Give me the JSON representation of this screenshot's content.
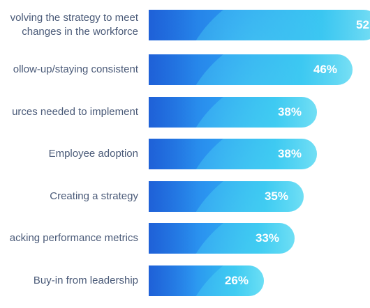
{
  "chart_data": {
    "type": "bar",
    "orientation": "horizontal",
    "categories": [
      "volving the strategy to meet\nchanges in the workforce",
      "ollow-up/staying consistent",
      "urces needed to implement",
      "Employee adoption",
      "Creating a strategy",
      "acking performance metrics",
      "Buy-in from leadership"
    ],
    "value_labels": [
      "52",
      "46%",
      "38%",
      "38%",
      "35%",
      "33%",
      "26%"
    ],
    "values": [
      52,
      46,
      38,
      38,
      35,
      33,
      26
    ],
    "colors": {
      "bar_start": "#1f6fe0",
      "bar_mid": "#2b95f0",
      "bar_end": "#7fe0f4",
      "label_text": "#4a5a78",
      "value_text": "#ffffff"
    }
  }
}
